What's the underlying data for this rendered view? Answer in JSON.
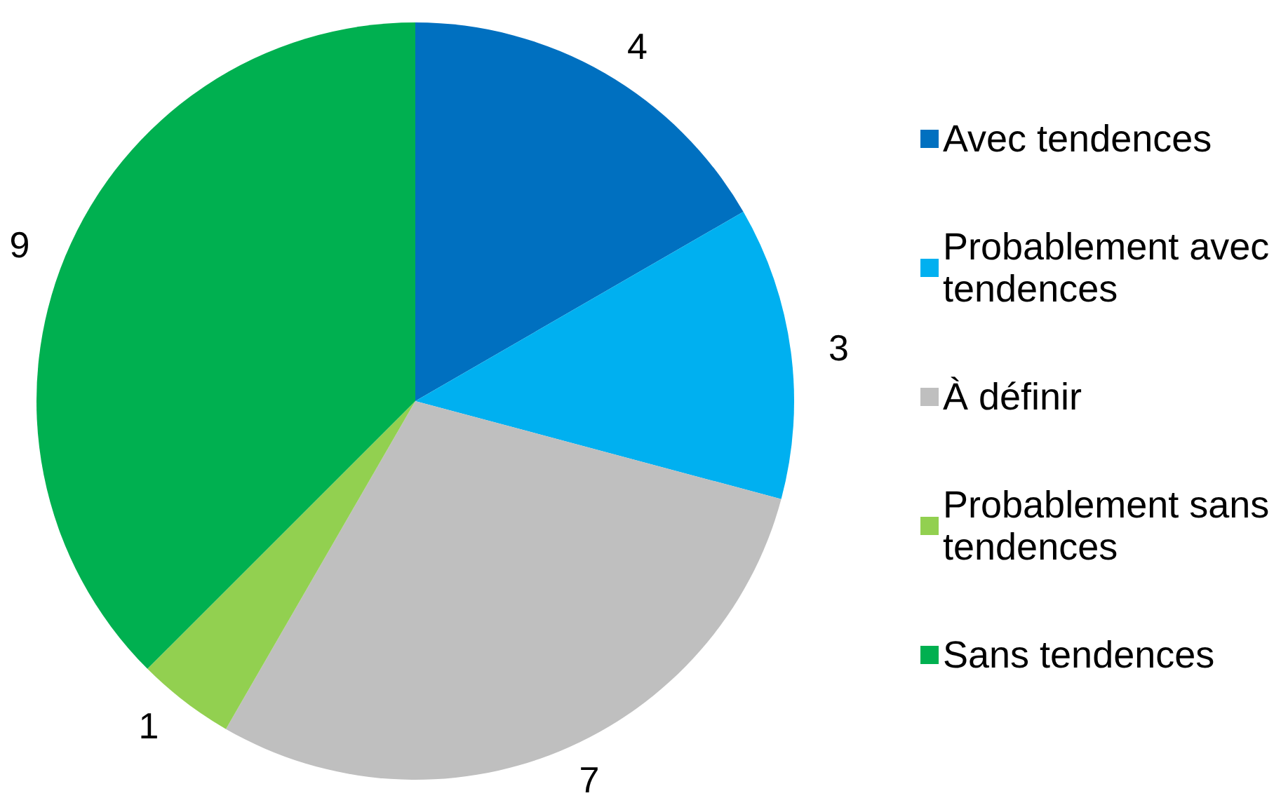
{
  "chart_data": {
    "type": "pie",
    "categories": [
      "Avec tendences",
      "Probablement avec tendences",
      "À définir",
      "Probablement sans tendences",
      "Sans tendences"
    ],
    "values": [
      4,
      3,
      7,
      1,
      9
    ],
    "colors": [
      "#0070c0",
      "#00b0f0",
      "#bfbfbf",
      "#92d050",
      "#00b050"
    ],
    "data_labels": true,
    "legend": "right"
  }
}
